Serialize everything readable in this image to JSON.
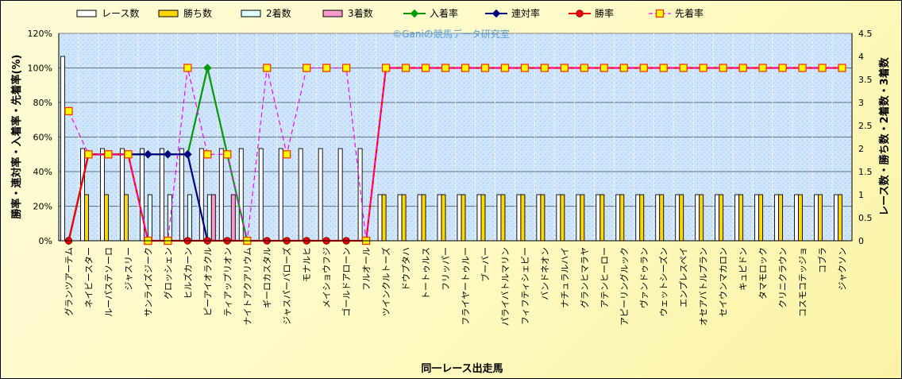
{
  "watermark": "©Ganiの競馬データ研究室",
  "chart_data": {
    "type": "bar+line",
    "xlabel": "同一レース出走馬",
    "ylabel_left": "勝率・連対率・入着率・先着率(%)",
    "ylabel_right": "レース数・勝ち数・2着数・3着数",
    "ylim_left": [
      0,
      120
    ],
    "ylim_right": [
      0,
      4.5
    ],
    "yticks_left": [
      "0%",
      "20%",
      "40%",
      "60%",
      "80%",
      "100%",
      "120%"
    ],
    "yticks_right": [
      "0",
      "0.5",
      "1",
      "1.5",
      "2",
      "2.5",
      "3",
      "3.5",
      "4",
      "4.5"
    ],
    "grid": true,
    "legend_position": "top",
    "categories": [
      "グランツアーテム",
      "ネイビースター",
      "ルーパステソーロ",
      "ジャスリー",
      "サンライズジーク",
      "グロッシェン",
      "ヒルズカーン",
      "ピーアイオラクル",
      "ティアップリオン",
      "ナイトアクアリウム",
      "ギーロカスタル",
      "ジャスパーバローズ",
      "モナルヒ",
      "メイショウフジ",
      "ゴールドアローン",
      "フルオール",
      "ツインクルトーズ",
      "ドウプタハ",
      "トートゥルス",
      "フリッパー",
      "フライヤートゥルー",
      "ブーバー",
      "パライバトルマリン",
      "フィフティシェビー",
      "バンドネオン",
      "ナチュラルハイ",
      "グランヒマラヤ",
      "アテンヒーロー",
      "アピーリングルック",
      "ヴァンドゥラン",
      "ウェットシーズン",
      "エンプレスペイ",
      "オセアバトルプラン",
      "セイウンマカロン",
      "キュピドン",
      "タマモロック",
      "クリニクラウン",
      "コスモコテッジョ",
      "コブラ",
      "ジャクソン"
    ],
    "bar_series": [
      {
        "name": "レース数",
        "color": "#ffffff",
        "axis": "right",
        "values": [
          4,
          2,
          2,
          2,
          2,
          2,
          2,
          2,
          2,
          2,
          2,
          2,
          2,
          2,
          2,
          2,
          1,
          1,
          1,
          1,
          1,
          1,
          1,
          1,
          1,
          1,
          1,
          1,
          1,
          1,
          1,
          1,
          1,
          1,
          1,
          1,
          1,
          1,
          1,
          1
        ]
      },
      {
        "name": "勝ち数",
        "color": "#ffd700",
        "axis": "right",
        "values": [
          0,
          1,
          1,
          1,
          0,
          0,
          0,
          0,
          0,
          0,
          0,
          0,
          0,
          0,
          0,
          0,
          1,
          1,
          1,
          1,
          1,
          1,
          1,
          1,
          1,
          1,
          1,
          1,
          1,
          1,
          1,
          1,
          1,
          1,
          1,
          1,
          1,
          1,
          1,
          1
        ]
      },
      {
        "name": "2着数",
        "color": "#e0ffff",
        "axis": "right",
        "values": [
          0,
          0,
          0,
          0,
          1,
          1,
          1,
          1,
          0,
          0,
          0,
          0,
          0,
          0,
          0,
          0,
          0,
          0,
          0,
          0,
          0,
          0,
          0,
          0,
          0,
          0,
          0,
          0,
          0,
          0,
          0,
          0,
          0,
          0,
          0,
          0,
          0,
          0,
          0,
          0
        ]
      },
      {
        "name": "3着数",
        "color": "#ff99cc",
        "axis": "right",
        "values": [
          0,
          0,
          0,
          0,
          0,
          0,
          0,
          1,
          1,
          0,
          0,
          0,
          0,
          0,
          0,
          0,
          0,
          0,
          0,
          0,
          0,
          0,
          0,
          0,
          0,
          0,
          0,
          0,
          0,
          0,
          0,
          0,
          0,
          0,
          0,
          0,
          0,
          0,
          0,
          0
        ]
      }
    ],
    "line_series": [
      {
        "name": "入着率",
        "color": "#009900",
        "marker": "diamond",
        "axis": "left",
        "values": [
          0,
          50,
          50,
          50,
          50,
          50,
          50,
          100,
          50,
          0,
          null,
          null,
          null,
          null,
          null,
          null,
          null,
          null,
          null,
          null,
          null,
          null,
          null,
          null,
          null,
          null,
          null,
          null,
          null,
          null,
          null,
          null,
          null,
          null,
          null,
          null,
          null,
          null,
          null,
          null
        ]
      },
      {
        "name": "連対率",
        "color": "#000080",
        "marker": "diamond",
        "axis": "left",
        "values": [
          0,
          50,
          50,
          50,
          50,
          50,
          50,
          0,
          null,
          null,
          null,
          null,
          null,
          null,
          null,
          null,
          null,
          null,
          null,
          null,
          null,
          null,
          null,
          null,
          null,
          null,
          null,
          null,
          null,
          null,
          null,
          null,
          null,
          null,
          null,
          null,
          null,
          null,
          null,
          null
        ]
      },
      {
        "name": "勝率",
        "color": "#ff0000",
        "marker": "circle",
        "axis": "left",
        "values": [
          0,
          50,
          50,
          50,
          0,
          0,
          0,
          0,
          0,
          0,
          0,
          0,
          0,
          0,
          0,
          0,
          100,
          100,
          100,
          100,
          100,
          100,
          100,
          100,
          100,
          100,
          100,
          100,
          100,
          100,
          100,
          100,
          100,
          100,
          100,
          100,
          100,
          100,
          100,
          100
        ]
      },
      {
        "name": "先着率",
        "color": "#ff00ff",
        "marker": "square",
        "dashed": true,
        "axis": "left",
        "values": [
          75,
          50,
          50,
          50,
          0,
          0,
          100,
          50,
          50,
          0,
          100,
          50,
          100,
          100,
          100,
          0,
          100,
          100,
          100,
          100,
          100,
          100,
          100,
          100,
          100,
          100,
          100,
          100,
          100,
          100,
          100,
          100,
          100,
          100,
          100,
          100,
          100,
          100,
          100,
          100
        ]
      }
    ]
  }
}
